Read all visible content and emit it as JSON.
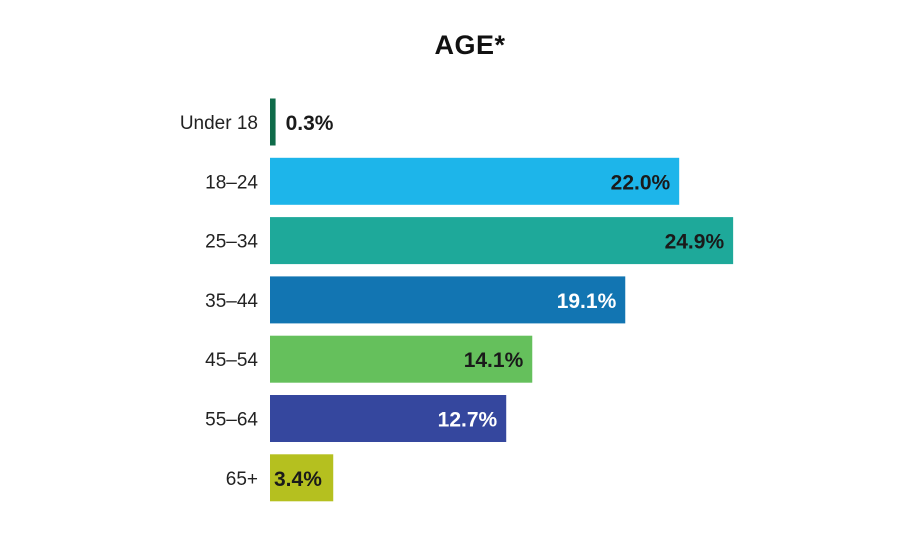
{
  "chart_data": {
    "type": "bar",
    "orientation": "horizontal",
    "title": "AGE*",
    "xlabel": "",
    "ylabel": "",
    "categories": [
      "Under 18",
      "18–24",
      "25–34",
      "35–44",
      "45–54",
      "55–64",
      "65+"
    ],
    "values": [
      0.3,
      22.0,
      24.9,
      19.1,
      14.1,
      12.7,
      3.4
    ],
    "value_labels": [
      "0.3%",
      "22.0%",
      "24.9%",
      "19.1%",
      "14.1%",
      "12.7%",
      "3.4%"
    ],
    "colors": [
      "#0f6b4a",
      "#1db5ea",
      "#1ea99a",
      "#1275b2",
      "#65c05c",
      "#35479e",
      "#b5c01f"
    ],
    "label_colors": [
      "#1a1a1a",
      "#1a1a1a",
      "#1a1a1a",
      "#ffffff",
      "#1a1a1a",
      "#ffffff",
      "#1a1a1a"
    ],
    "xlim": [
      0,
      25
    ],
    "grid": false,
    "legend": "none"
  }
}
